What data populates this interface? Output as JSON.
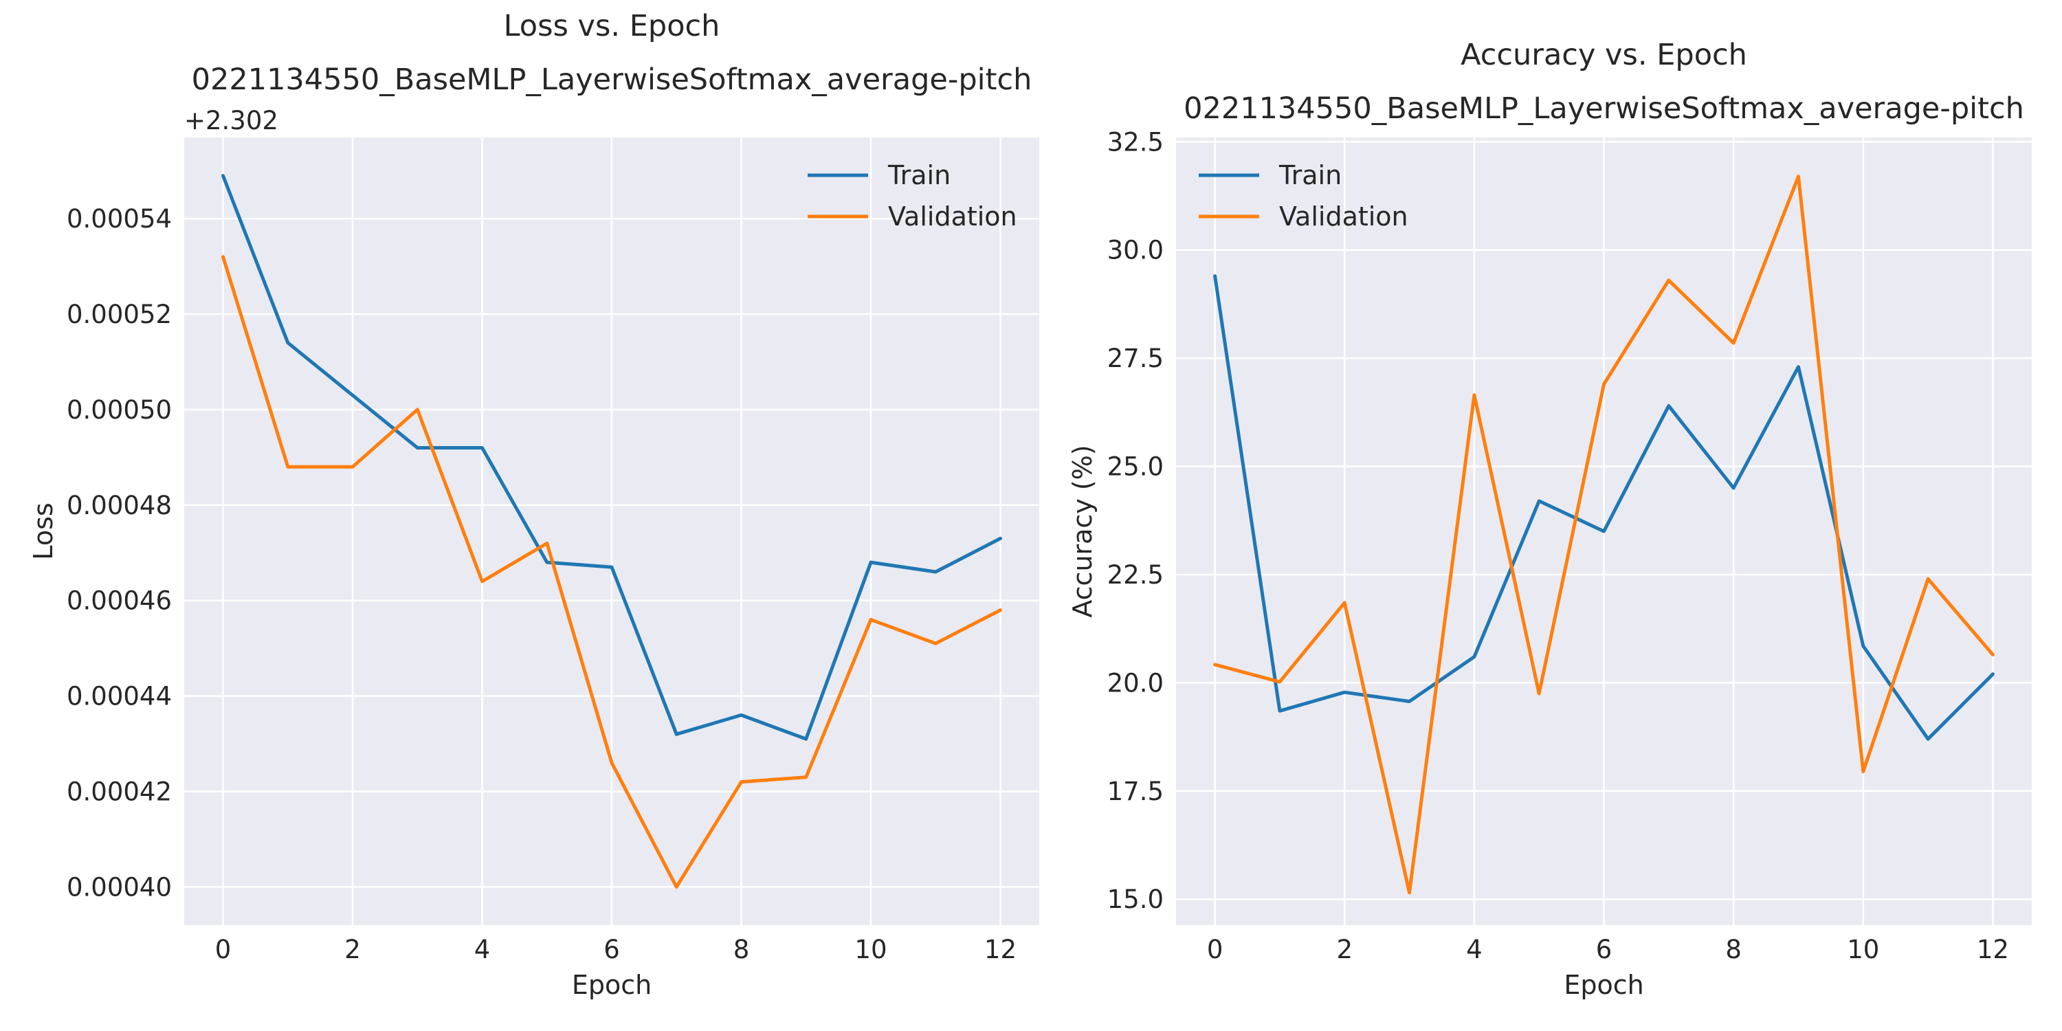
{
  "colors": {
    "train": "#1f77b4",
    "validation": "#ff7f0e",
    "plot_bg": "#eaeaf2",
    "grid": "#ffffff",
    "text": "#262626"
  },
  "chart_data": [
    {
      "type": "line",
      "title": "Loss vs. Epoch",
      "subtitle": "0221134550_BaseMLP_LayerwiseSoftmax_average-pitch",
      "xlabel": "Epoch",
      "ylabel": "Loss",
      "y_offset_label": "+2.302",
      "x": [
        0,
        1,
        2,
        3,
        4,
        5,
        6,
        7,
        8,
        9,
        10,
        11,
        12
      ],
      "xlim": [
        -0.6,
        12.6
      ],
      "ylim": [
        0.000392,
        0.000557
      ],
      "x_ticks": [
        0,
        2,
        4,
        6,
        8,
        10,
        12
      ],
      "x_tick_labels": [
        "0",
        "2",
        "4",
        "6",
        "8",
        "10",
        "12"
      ],
      "y_ticks": [
        0.0004,
        0.00042,
        0.00044,
        0.00046,
        0.00048,
        0.0005,
        0.00052,
        0.00054
      ],
      "y_tick_labels": [
        "0.00040",
        "0.00042",
        "0.00044",
        "0.00046",
        "0.00048",
        "0.00050",
        "0.00052",
        "0.00054"
      ],
      "grid": true,
      "legend_position": "top-right",
      "series": [
        {
          "name": "Train",
          "values": [
            0.000549,
            0.000514,
            0.000503,
            0.000492,
            0.000492,
            0.000468,
            0.000467,
            0.000432,
            0.000436,
            0.000431,
            0.000468,
            0.000466,
            0.000473
          ]
        },
        {
          "name": "Validation",
          "values": [
            0.000532,
            0.000488,
            0.000488,
            0.0005,
            0.000464,
            0.000472,
            0.000426,
            0.0004,
            0.000422,
            0.000423,
            0.000456,
            0.000451,
            0.000458
          ]
        }
      ]
    },
    {
      "type": "line",
      "title": "Accuracy vs. Epoch",
      "subtitle": "0221134550_BaseMLP_LayerwiseSoftmax_average-pitch",
      "xlabel": "Epoch",
      "ylabel": "Accuracy (%)",
      "x": [
        0,
        1,
        2,
        3,
        4,
        5,
        6,
        7,
        8,
        9,
        10,
        11,
        12
      ],
      "xlim": [
        -0.6,
        12.6
      ],
      "ylim": [
        14.4,
        32.6
      ],
      "x_ticks": [
        0,
        2,
        4,
        6,
        8,
        10,
        12
      ],
      "x_tick_labels": [
        "0",
        "2",
        "4",
        "6",
        "8",
        "10",
        "12"
      ],
      "y_ticks": [
        15,
        17.5,
        20,
        22.5,
        25,
        27.5,
        30,
        32.5
      ],
      "y_tick_labels": [
        "15.0",
        "17.5",
        "20.0",
        "22.5",
        "25.0",
        "27.5",
        "30.0",
        "32.5"
      ],
      "grid": true,
      "legend_position": "top-left",
      "series": [
        {
          "name": "Train",
          "values": [
            29.4,
            19.35,
            19.78,
            19.57,
            20.6,
            24.2,
            23.5,
            26.4,
            24.5,
            27.3,
            20.85,
            18.7,
            20.2
          ]
        },
        {
          "name": "Validation",
          "values": [
            20.42,
            20.02,
            21.85,
            15.15,
            26.65,
            19.75,
            26.9,
            29.3,
            27.85,
            31.7,
            17.95,
            22.4,
            20.65
          ]
        }
      ]
    }
  ]
}
